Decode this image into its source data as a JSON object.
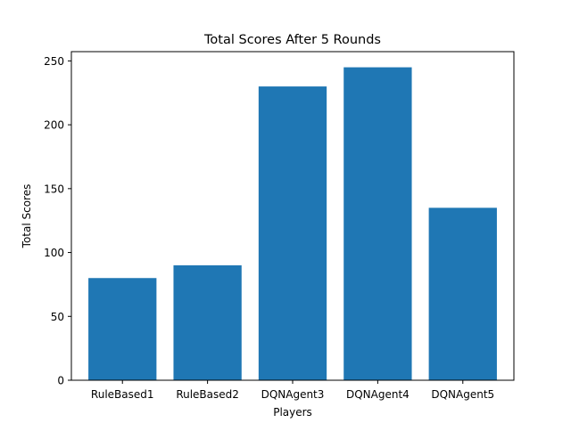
{
  "chart_data": {
    "type": "bar",
    "title": "Total Scores After 5 Rounds",
    "xlabel": "Players",
    "ylabel": "Total Scores",
    "categories": [
      "RuleBased1",
      "RuleBased2",
      "DQNAgent3",
      "DQNAgent4",
      "DQNAgent5"
    ],
    "values": [
      80,
      90,
      230,
      245,
      135
    ],
    "ylim": [
      0,
      257.25
    ],
    "yticks": [
      0,
      50,
      100,
      150,
      200,
      250
    ],
    "ytick_labels": [
      "0",
      "50",
      "100",
      "150",
      "200",
      "250"
    ],
    "grid": false,
    "legend": "none",
    "bar_color": "#1f77b4"
  }
}
